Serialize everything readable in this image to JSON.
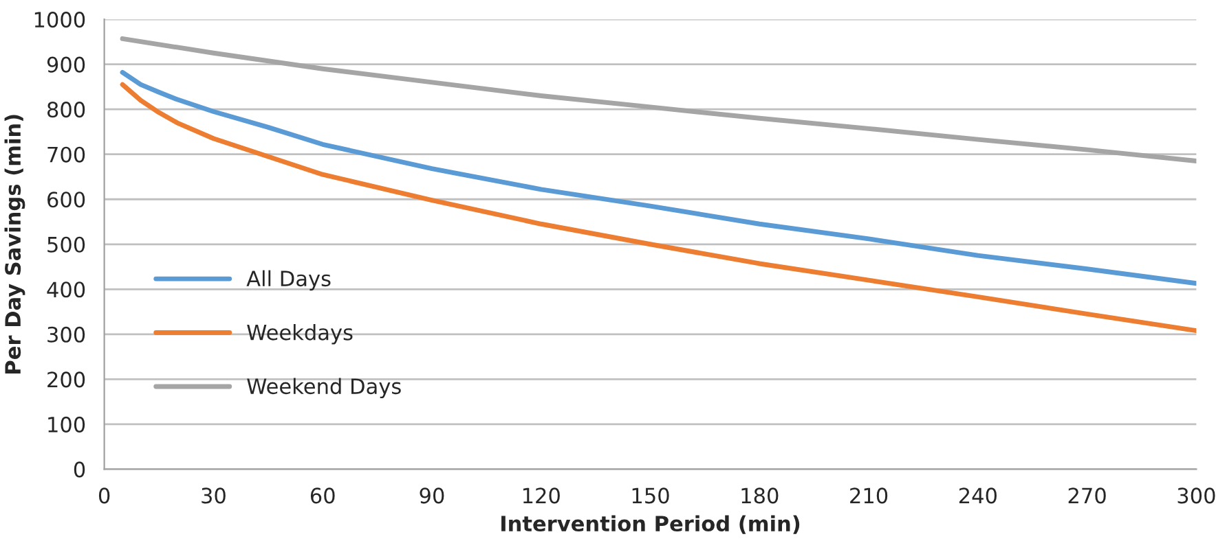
{
  "chart_data": {
    "type": "line",
    "xlabel": "Intervention Period (min)",
    "ylabel": "Per Day Savings (min)",
    "x": [
      5,
      10,
      15,
      20,
      30,
      45,
      60,
      90,
      120,
      150,
      180,
      210,
      240,
      270,
      300
    ],
    "series": [
      {
        "name": "All Days",
        "color": "#5b9bd5",
        "values": [
          882,
          855,
          838,
          822,
          795,
          760,
          722,
          668,
          622,
          585,
          545,
          512,
          475,
          445,
          413
        ]
      },
      {
        "name": "Weekdays",
        "color": "#ed7d31",
        "values": [
          855,
          820,
          793,
          770,
          735,
          695,
          655,
          598,
          545,
          500,
          457,
          420,
          383,
          345,
          308
        ]
      },
      {
        "name": "Weekend Days",
        "color": "#a5a5a5",
        "x": [
          5,
          30,
          60,
          90,
          120,
          150,
          180,
          210,
          240,
          270,
          300
        ],
        "values": [
          957,
          925,
          890,
          860,
          830,
          805,
          780,
          757,
          733,
          710,
          685
        ]
      }
    ],
    "xlim": [
      0,
      300
    ],
    "xticks": [
      0,
      30,
      60,
      90,
      120,
      150,
      180,
      210,
      240,
      270,
      300
    ],
    "ylim": [
      0,
      1000
    ],
    "yticks": [
      0,
      100,
      200,
      300,
      400,
      500,
      600,
      700,
      800,
      900,
      1000
    ],
    "grid": "y",
    "legend": "left",
    "marker": "none",
    "line_style": "solid"
  }
}
